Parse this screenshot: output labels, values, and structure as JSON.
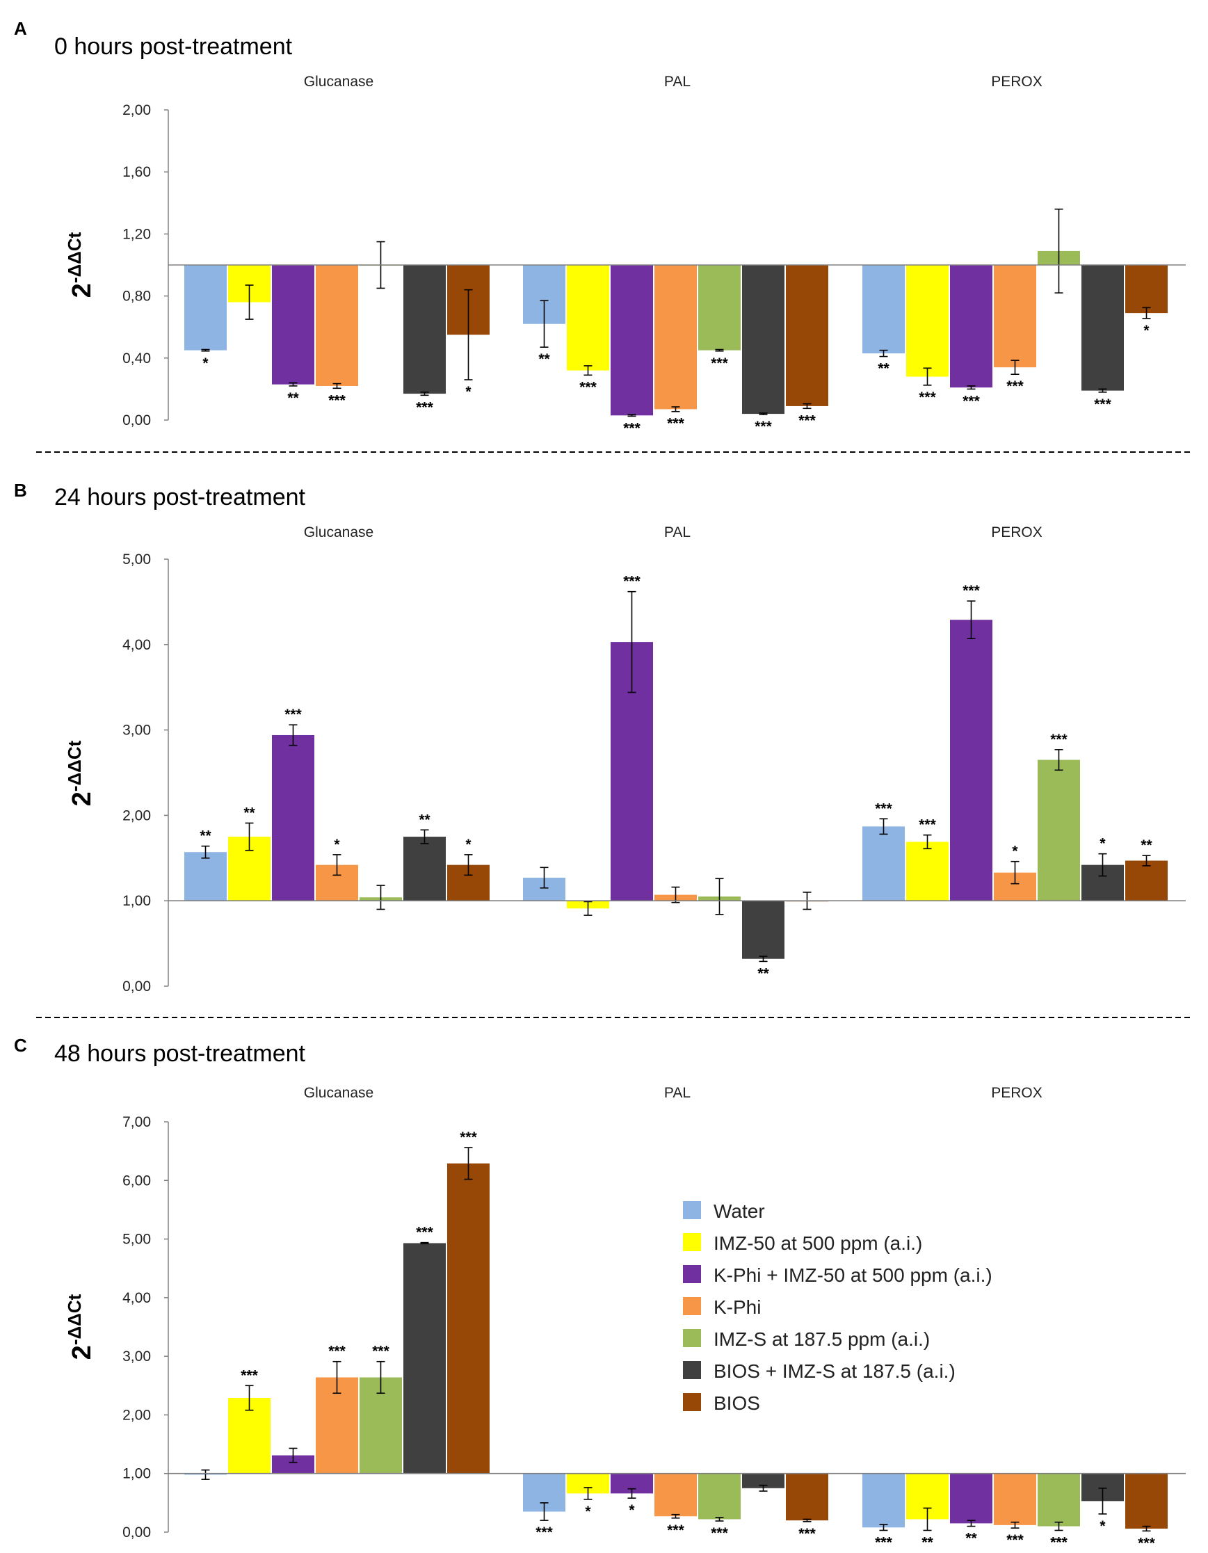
{
  "series_names": [
    "Water",
    "IMZ-50 at 500 ppm (a.i.)",
    "K-Phi + IMZ-50 at 500 ppm (a.i.)",
    "K-Phi",
    "IMZ-S at 187.5 ppm (a.i.)",
    "BIOS + IMZ-S at 187.5 (a.i.)",
    "BIOS"
  ],
  "series_colors": [
    "#8db4e2",
    "#ffff00",
    "#7030a0",
    "#f79646",
    "#9bbb59",
    "#404040",
    "#974706"
  ],
  "y_axis_label": {
    "base": "2",
    "exponent": "-ΔΔCt"
  },
  "chart_data": [
    {
      "panel": "A",
      "type": "bar",
      "title": "0 hours post-treatment",
      "groups": [
        "Glucanase",
        "PAL",
        "PEROX"
      ],
      "ylim": [
        0,
        2
      ],
      "ytick_values": [
        0,
        0.4,
        0.8,
        1.2,
        1.6,
        2.0
      ],
      "ytick_labels": [
        "0,00",
        "0,40",
        "0,80",
        "1,20",
        "1,60",
        "2,00"
      ],
      "baseline": 1.0,
      "values": [
        [
          0.45,
          0.76,
          0.23,
          0.22,
          1.0,
          0.17,
          0.55
        ],
        [
          0.62,
          0.32,
          0.03,
          0.07,
          0.45,
          0.04,
          0.09
        ],
        [
          0.43,
          0.28,
          0.21,
          0.34,
          1.09,
          0.19,
          0.69
        ]
      ],
      "errors": [
        [
          0.005,
          0.11,
          0.01,
          0.015,
          0.15,
          0.01,
          0.29
        ],
        [
          0.15,
          0.03,
          0.005,
          0.015,
          0.005,
          0.005,
          0.015
        ],
        [
          0.02,
          0.055,
          0.01,
          0.045,
          0.27,
          0.01,
          0.035
        ]
      ],
      "significance": [
        [
          "*",
          "",
          "**",
          "***",
          "",
          "***",
          "*"
        ],
        [
          "**",
          "***",
          "***",
          "***",
          "***",
          "***",
          "***"
        ],
        [
          "**",
          "***",
          "***",
          "***",
          "",
          "***",
          "*"
        ]
      ]
    },
    {
      "panel": "B",
      "type": "bar",
      "title": "24 hours post-treatment",
      "groups": [
        "Glucanase",
        "PAL",
        "PEROX"
      ],
      "ylim": [
        0,
        5
      ],
      "ytick_values": [
        0,
        1,
        2,
        3,
        4,
        5
      ],
      "ytick_labels": [
        "0,00",
        "1,00",
        "2,00",
        "3,00",
        "4,00",
        "5,00"
      ],
      "baseline": 1.0,
      "values": [
        [
          1.57,
          1.75,
          2.94,
          1.42,
          1.04,
          1.75,
          1.42
        ],
        [
          1.27,
          0.91,
          4.03,
          1.07,
          1.05,
          0.32,
          1.0
        ],
        [
          1.87,
          1.69,
          4.29,
          1.33,
          2.65,
          1.42,
          1.47
        ]
      ],
      "errors": [
        [
          0.07,
          0.16,
          0.12,
          0.12,
          0.14,
          0.08,
          0.12
        ],
        [
          0.12,
          0.08,
          0.59,
          0.09,
          0.21,
          0.03,
          0.1
        ],
        [
          0.09,
          0.08,
          0.22,
          0.13,
          0.12,
          0.13,
          0.06
        ]
      ],
      "significance": [
        [
          "**",
          "**",
          "***",
          "*",
          "",
          "**",
          "*"
        ],
        [
          "",
          "",
          "***",
          "",
          "",
          "**",
          ""
        ],
        [
          "***",
          "***",
          "***",
          "*",
          "***",
          "*",
          "**"
        ]
      ]
    },
    {
      "panel": "C",
      "type": "bar",
      "title": "48 hours post-treatment",
      "groups": [
        "Glucanase",
        "PAL",
        "PEROX"
      ],
      "ylim": [
        0,
        7
      ],
      "ytick_values": [
        0,
        1,
        2,
        3,
        4,
        5,
        6,
        7
      ],
      "ytick_labels": [
        "0,00",
        "1,00",
        "2,00",
        "3,00",
        "4,00",
        "5,00",
        "6,00",
        "7,00"
      ],
      "baseline": 1.0,
      "values": [
        [
          0.98,
          2.29,
          1.31,
          2.64,
          2.64,
          4.93,
          6.29
        ],
        [
          0.35,
          0.66,
          0.66,
          0.27,
          0.22,
          0.75,
          0.2
        ],
        [
          0.08,
          0.22,
          0.15,
          0.12,
          0.1,
          0.53,
          0.06
        ]
      ],
      "errors": [
        [
          0.08,
          0.21,
          0.12,
          0.27,
          0.27,
          0.01,
          0.27
        ],
        [
          0.15,
          0.1,
          0.08,
          0.03,
          0.03,
          0.05,
          0.02
        ],
        [
          0.05,
          0.19,
          0.05,
          0.05,
          0.07,
          0.22,
          0.04
        ]
      ],
      "significance": [
        [
          "",
          "***",
          "",
          "***",
          "***",
          "***",
          "***"
        ],
        [
          "***",
          "*",
          "*",
          "***",
          "***",
          "",
          "***"
        ],
        [
          "***",
          "**",
          "**",
          "***",
          "***",
          "*",
          "***"
        ]
      ]
    }
  ]
}
